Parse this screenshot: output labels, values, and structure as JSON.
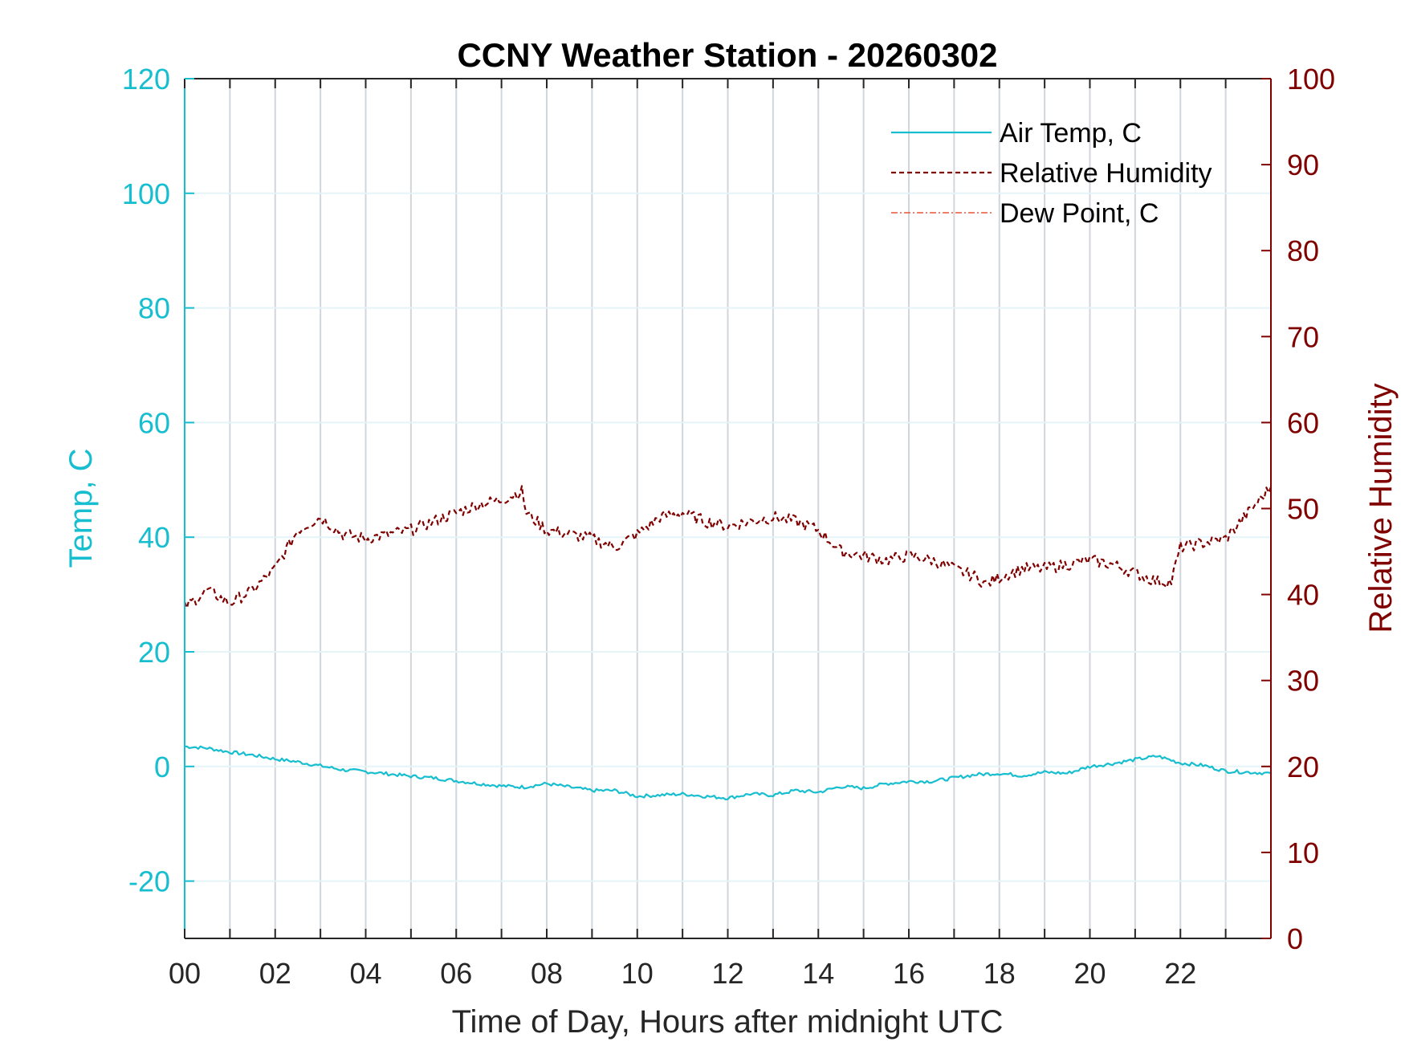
{
  "chart_data": {
    "type": "line",
    "title": "CCNY Weather Station - 20260302",
    "xlabel": "Time of Day, Hours after midnight UTC",
    "ylabel_left": "Temp, C",
    "ylabel_right": "Relative Humidity",
    "xlim": [
      0,
      24
    ],
    "ylim_left": [
      -30,
      120
    ],
    "ylim_right": [
      0,
      100
    ],
    "x_ticks": [
      0,
      2,
      4,
      6,
      8,
      10,
      12,
      14,
      16,
      18,
      20,
      22
    ],
    "x_tick_labels": [
      "00",
      "02",
      "04",
      "06",
      "08",
      "10",
      "12",
      "14",
      "16",
      "18",
      "20",
      "22"
    ],
    "y_left_ticks": [
      -20,
      0,
      20,
      40,
      60,
      80,
      100,
      120
    ],
    "y_right_ticks": [
      0,
      10,
      20,
      30,
      40,
      50,
      60,
      70,
      80,
      90,
      100
    ],
    "grid": true,
    "legend_position": "top-right",
    "colors": {
      "air_temp": "#17becf",
      "humidity": "#800000",
      "dew_point": "#e8563a",
      "axis_right": "#800000",
      "axis_left": "#17becf"
    },
    "series": [
      {
        "name": "Air Temp, C",
        "axis": "left",
        "style": "solid",
        "x": [
          0,
          0.5,
          1,
          1.5,
          2,
          2.5,
          3,
          3.5,
          4,
          4.5,
          5,
          5.5,
          6,
          6.5,
          7,
          7.5,
          8,
          8.5,
          9,
          9.5,
          10,
          10.5,
          11,
          11.5,
          12,
          12.5,
          13,
          13.5,
          14,
          14.5,
          15,
          15.5,
          16,
          16.5,
          17,
          17.5,
          18,
          18.5,
          19,
          19.5,
          20,
          20.5,
          21,
          21.5,
          22,
          22.5,
          23,
          23.5,
          24
        ],
        "values": [
          3.5,
          3.2,
          2.5,
          2.0,
          1.3,
          0.8,
          0.1,
          -0.6,
          -0.9,
          -1.3,
          -1.7,
          -2.0,
          -2.5,
          -3.0,
          -3.4,
          -3.6,
          -3.0,
          -3.6,
          -4.2,
          -4.2,
          -5.2,
          -5.0,
          -4.8,
          -5.2,
          -5.5,
          -4.8,
          -5.0,
          -4.2,
          -4.5,
          -3.5,
          -3.8,
          -3.0,
          -2.6,
          -2.6,
          -2.0,
          -1.4,
          -1.2,
          -1.6,
          -1.0,
          -1.2,
          0.0,
          0.5,
          1.2,
          1.8,
          0.6,
          0.2,
          -0.8,
          -1.0,
          -1.2
        ]
      },
      {
        "name": "Relative Humidity",
        "axis": "right",
        "style": "dashed",
        "x": [
          0,
          0.5,
          1,
          1.5,
          2,
          2.5,
          3,
          3.5,
          4,
          4.5,
          5,
          5.5,
          6,
          6.5,
          7,
          7.45,
          7.55,
          8,
          8.5,
          9,
          9.5,
          10,
          10.5,
          11,
          11.5,
          12,
          12.5,
          13,
          13.5,
          14,
          14.5,
          15,
          15.5,
          16,
          16.5,
          17,
          17.5,
          17.7,
          18,
          18.5,
          19,
          19.5,
          20,
          20.5,
          21,
          21.5,
          21.8,
          22,
          22.5,
          23,
          23.5,
          24
        ],
        "values": [
          38.5,
          40.5,
          39,
          40.5,
          43,
          47.5,
          49,
          47,
          46.5,
          47,
          47.5,
          48.5,
          49.5,
          50.5,
          51,
          52,
          49.5,
          47.5,
          47,
          46.5,
          45.5,
          47,
          49,
          49.5,
          48.5,
          48,
          48.5,
          49,
          48.5,
          47.5,
          45,
          44.5,
          44,
          44.5,
          44,
          43,
          42,
          41.2,
          42,
          43,
          43,
          43.5,
          44,
          43.5,
          42.5,
          41.5,
          41.5,
          45.5,
          46,
          46.5,
          49.5,
          52.5
        ]
      },
      {
        "name": "Dew Point, C",
        "axis": "left",
        "style": "dash-dot",
        "x": [],
        "values": []
      }
    ]
  }
}
